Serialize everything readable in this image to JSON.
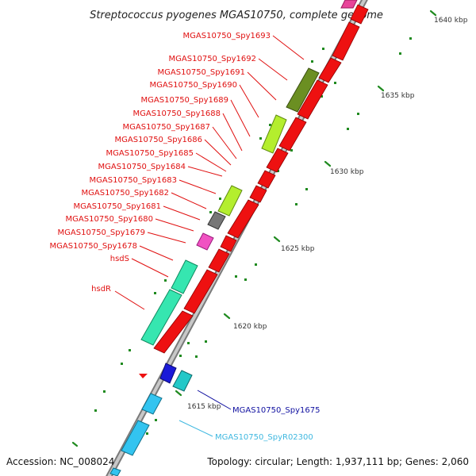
{
  "title": "Streptococcus pyogenes MGAS10750, complete genome",
  "footer": {
    "accession": "Accession: NC_008024",
    "topology": "Topology: circular; Length: 1,937,111 bp; Genes: 2,060"
  },
  "colors": {
    "forward_gene": "#ee1111",
    "label_red": "#e01010",
    "label_blue": "#1010a0",
    "label_cyan": "#3fb8e0",
    "tick": "#1f8a1f",
    "backbone": "#888888"
  },
  "scale_labels": [
    "1640 kbp",
    "1635 kbp",
    "1630 kbp",
    "1625 kbp",
    "1620 kbp",
    "1615 kbp"
  ],
  "gene_labels_left": [
    "MGAS10750_Spy1693",
    "MGAS10750_Spy1692",
    "MGAS10750_Spy1691",
    "MGAS10750_Spy1690",
    "MGAS10750_Spy1689",
    "MGAS10750_Spy1688",
    "MGAS10750_Spy1687",
    "MGAS10750_Spy1686",
    "MGAS10750_Spy1685",
    "MGAS10750_Spy1684",
    "MGAS10750_Spy1683",
    "MGAS10750_Spy1682",
    "MGAS10750_Spy1681",
    "MGAS10750_Spy1680",
    "MGAS10750_Spy1679",
    "MGAS10750_Spy1678",
    "hsdS",
    "hsdR"
  ],
  "gene_labels_right": [
    "MGAS10750_Spy1675",
    "MGAS10750_SpyR02300"
  ]
}
